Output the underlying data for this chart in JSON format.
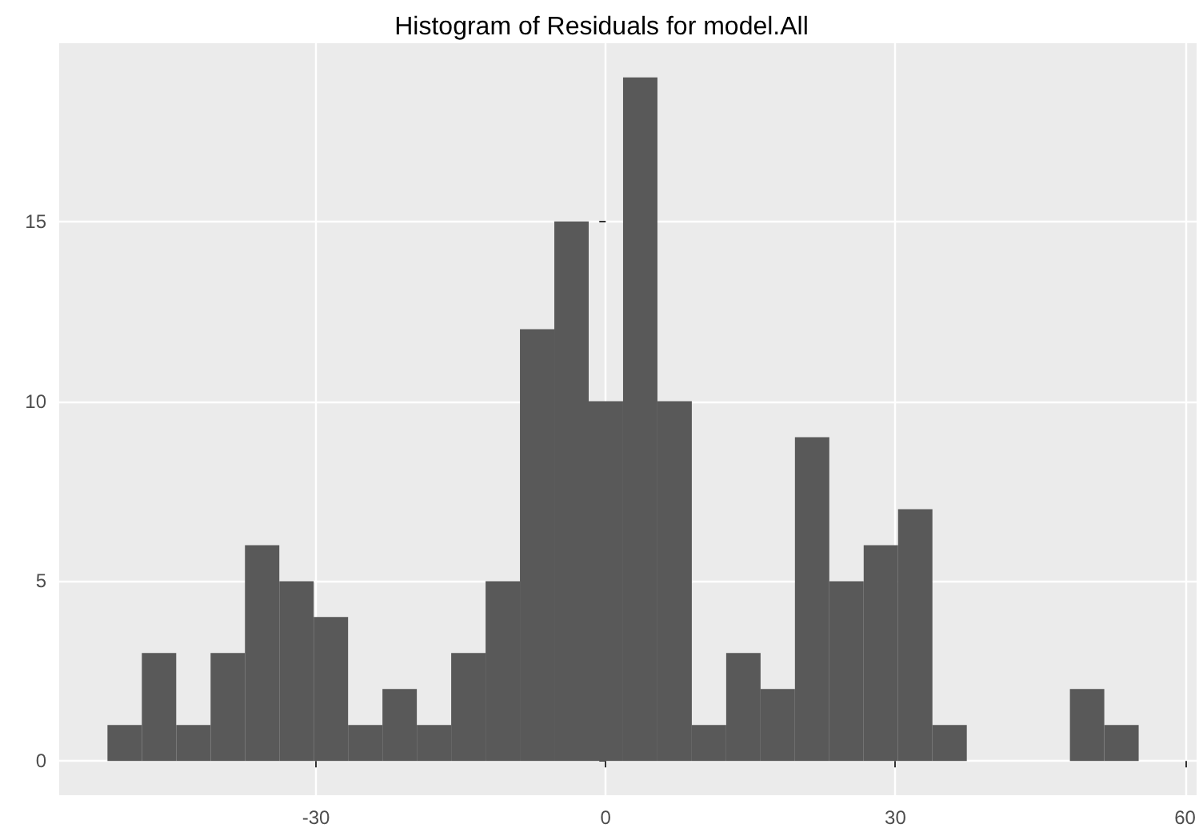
{
  "chart_data": {
    "type": "histogram",
    "title": "Histogram of Residuals for model.All",
    "bins": [
      -51.6,
      -48.04,
      -44.48,
      -40.92,
      -37.36,
      -33.8,
      -30.24,
      -26.68,
      -23.12,
      -19.56,
      -16.0,
      -12.44,
      -8.88,
      -5.32,
      -1.76,
      1.8,
      5.36,
      8.92,
      12.48,
      16.04,
      19.6,
      23.16,
      26.72,
      30.28,
      33.84,
      37.4,
      40.96,
      44.52,
      48.08,
      51.64,
      55.2
    ],
    "values": [
      1,
      3,
      1,
      3,
      6,
      5,
      4,
      1,
      2,
      1,
      3,
      5,
      12,
      15,
      10,
      19,
      10,
      1,
      3,
      2,
      9,
      5,
      6,
      7,
      1,
      0,
      0,
      0,
      2,
      1
    ],
    "color": "#595959",
    "xlim": [
      -56.6,
      61.2
    ],
    "xticks": [
      -30,
      0,
      30,
      60
    ],
    "ylim": [
      -0.95,
      19.95
    ],
    "yticks": [
      0,
      5,
      10,
      15
    ],
    "grid": true
  }
}
